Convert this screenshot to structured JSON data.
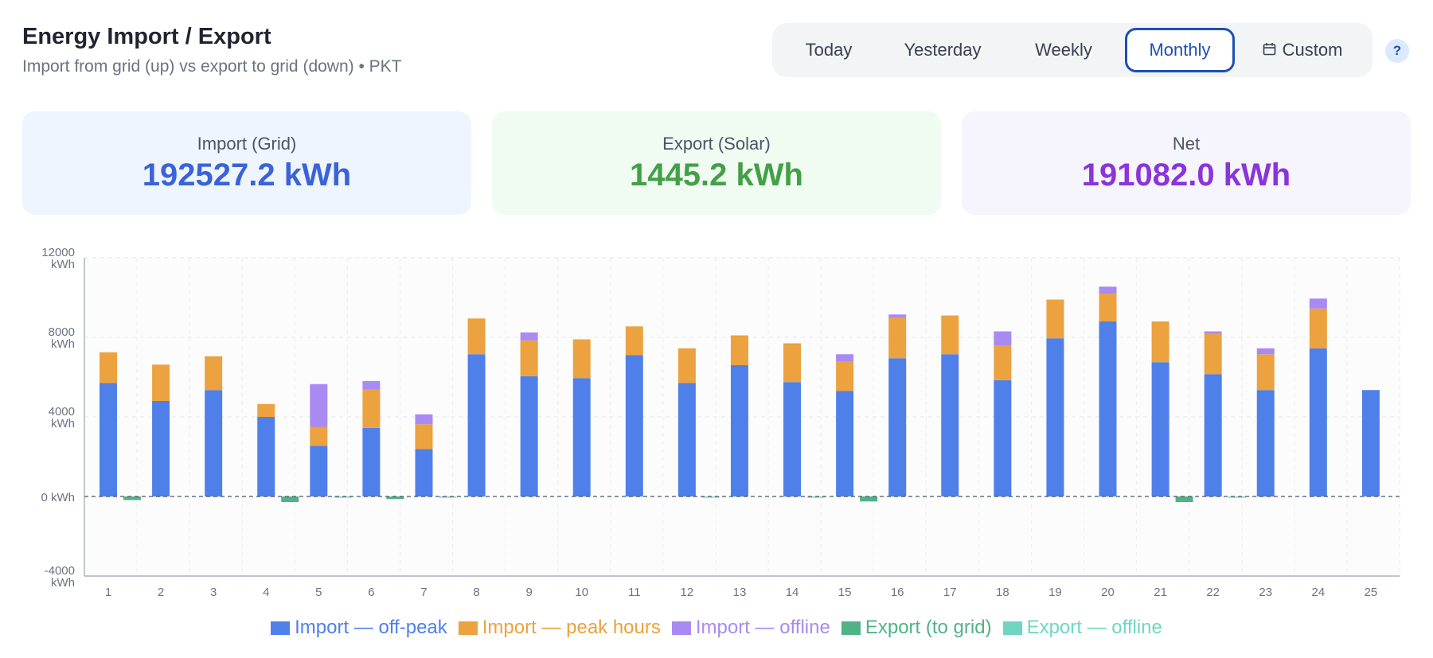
{
  "header": {
    "title": "Energy Import / Export",
    "subtitle": "Import from grid (up) vs export to grid (down) • PKT"
  },
  "range_tabs": [
    {
      "label": "Today",
      "active": false
    },
    {
      "label": "Yesterday",
      "active": false
    },
    {
      "label": "Weekly",
      "active": false
    },
    {
      "label": "Monthly",
      "active": true
    },
    {
      "label": "Custom",
      "active": false,
      "icon": "calendar-icon"
    }
  ],
  "help": {
    "label": "?",
    "icon": "help-icon"
  },
  "cards": [
    {
      "label": "Import (Grid)",
      "value": "192527.2 kWh",
      "color": "#3b63d6",
      "bg": "#eef5ff"
    },
    {
      "label": "Export (Solar)",
      "value": "1445.2 kWh",
      "color": "#43a047",
      "bg": "#f0fbf2"
    },
    {
      "label": "Net",
      "value": "191082.0 kWh",
      "color": "#8a35d8",
      "bg": "#f6f4fd"
    }
  ],
  "colors": {
    "import_offpeak": "#4f80ea",
    "import_peak": "#eba23f",
    "import_offline": "#a98af3",
    "export_grid": "#4fb386",
    "export_offline": "#6fd6c4"
  },
  "chart_data": {
    "type": "bar",
    "stacked": true,
    "categories": [
      "1",
      "2",
      "3",
      "4",
      "5",
      "6",
      "7",
      "8",
      "9",
      "10",
      "11",
      "12",
      "13",
      "14",
      "15",
      "16",
      "17",
      "18",
      "19",
      "20",
      "21",
      "22",
      "23",
      "24",
      "25"
    ],
    "ylim": [
      -4000,
      12000
    ],
    "yticks": [
      {
        "value": 12000,
        "label": "12000",
        "unit": "kWh"
      },
      {
        "value": 8000,
        "label": "8000",
        "unit": "kWh"
      },
      {
        "value": 4000,
        "label": "4000",
        "unit": "kWh"
      },
      {
        "value": 0,
        "label": "0 kWh",
        "unit": ""
      },
      {
        "value": -4000,
        "label": "-4000",
        "unit": "kWh"
      }
    ],
    "grid": true,
    "legend_position": "bottom-center",
    "series": [
      {
        "name": "Import — off-peak",
        "stack": "import",
        "color": "#4f80ea",
        "values": [
          5700,
          4800,
          5350,
          4000,
          2550,
          3450,
          2380,
          7150,
          6050,
          5950,
          7100,
          5700,
          6600,
          5750,
          5300,
          6950,
          7150,
          5850,
          7950,
          8800,
          6750,
          6150,
          5350,
          7450,
          5350
        ]
      },
      {
        "name": "Import — peak hours",
        "stack": "import",
        "color": "#eba23f",
        "values": [
          1550,
          1830,
          1700,
          650,
          950,
          1950,
          1250,
          1800,
          1800,
          1950,
          1450,
          1750,
          1500,
          1950,
          1500,
          2050,
          1950,
          1750,
          1950,
          1400,
          2050,
          2050,
          1800,
          2000,
          0
        ]
      },
      {
        "name": "Import — offline",
        "stack": "import",
        "color": "#a98af3",
        "values": [
          0,
          0,
          0,
          0,
          2150,
          400,
          500,
          0,
          400,
          0,
          0,
          0,
          0,
          0,
          350,
          150,
          0,
          700,
          0,
          350,
          0,
          100,
          300,
          500,
          0
        ]
      },
      {
        "name": "Export (to grid)",
        "stack": "export",
        "color": "#4fb386",
        "values": [
          -180,
          0,
          0,
          -280,
          0,
          -130,
          0,
          0,
          0,
          0,
          0,
          0,
          0,
          0,
          -250,
          0,
          0,
          0,
          0,
          0,
          -280,
          0,
          0,
          0,
          0
        ]
      },
      {
        "name": "Export — offline",
        "stack": "export",
        "color": "#6fd6c4",
        "values": [
          0,
          0,
          0,
          0,
          -30,
          0,
          -30,
          0,
          0,
          0,
          0,
          -30,
          0,
          -30,
          0,
          0,
          0,
          0,
          0,
          0,
          0,
          -30,
          0,
          0,
          0
        ]
      }
    ]
  }
}
